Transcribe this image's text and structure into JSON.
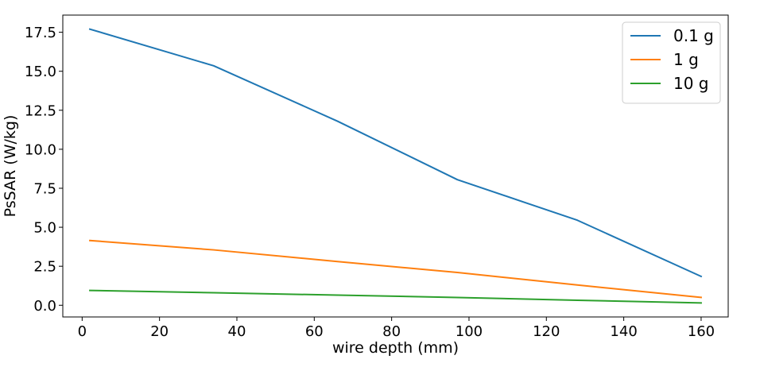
{
  "chart_data": {
    "type": "line",
    "xlabel": "wire depth (mm)",
    "ylabel": "PsSAR (W/kg)",
    "xlim": [
      -5,
      167
    ],
    "ylim": [
      -0.75,
      18.6
    ],
    "xticks": [
      0,
      20,
      40,
      60,
      80,
      100,
      120,
      140,
      160
    ],
    "yticks": [
      0.0,
      2.5,
      5.0,
      7.5,
      10.0,
      12.5,
      15.0,
      17.5
    ],
    "xtick_labels": [
      "0",
      "20",
      "40",
      "60",
      "80",
      "100",
      "120",
      "140",
      "160"
    ],
    "ytick_labels": [
      "0.0",
      "2.5",
      "5.0",
      "7.5",
      "10.0",
      "12.5",
      "15.0",
      "17.5"
    ],
    "grid": false,
    "legend_position": "top-right",
    "x": [
      2,
      34,
      66,
      97,
      128,
      160
    ],
    "series": [
      {
        "name": "0.1 g",
        "color": "#1f77b4",
        "values": [
          17.7,
          15.35,
          11.8,
          8.05,
          5.45,
          1.85
        ]
      },
      {
        "name": "1 g",
        "color": "#ff7f0e",
        "values": [
          4.15,
          3.55,
          2.8,
          2.1,
          1.3,
          0.5
        ]
      },
      {
        "name": "10 g",
        "color": "#2ca02c",
        "values": [
          0.95,
          0.8,
          0.65,
          0.5,
          0.32,
          0.15
        ]
      }
    ]
  }
}
